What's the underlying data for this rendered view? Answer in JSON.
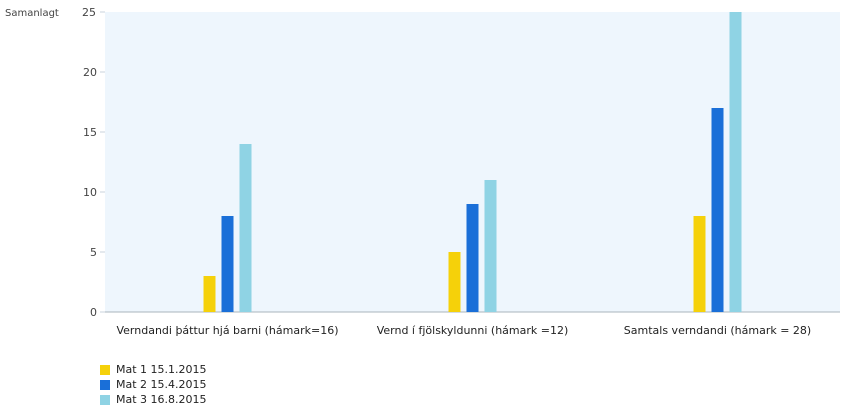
{
  "chart_data": {
    "type": "bar",
    "title": "",
    "xlabel": "",
    "ylabel": "Samanlagt",
    "ylim": [
      0,
      25
    ],
    "yticks": [
      0,
      5,
      10,
      15,
      20,
      25
    ],
    "grid": false,
    "legend_position": "bottom-left",
    "categories": [
      "Verndandi þáttur hjá barni (hámark=16)",
      "Vernd í fjölskyldunni (hámark =12)",
      "Samtals verndandi (hámark = 28)"
    ],
    "series": [
      {
        "name": "Mat 1 15.1.2015",
        "color": "#f5d10a",
        "values": [
          3,
          5,
          8
        ]
      },
      {
        "name": "Mat 2 15.4.2015",
        "color": "#1a6fd8",
        "values": [
          8,
          9,
          17
        ]
      },
      {
        "name": "Mat 3 16.8.2015",
        "color": "#8fd3e4",
        "values": [
          14,
          11,
          25
        ]
      }
    ],
    "plot_background": "#eef6fd"
  }
}
